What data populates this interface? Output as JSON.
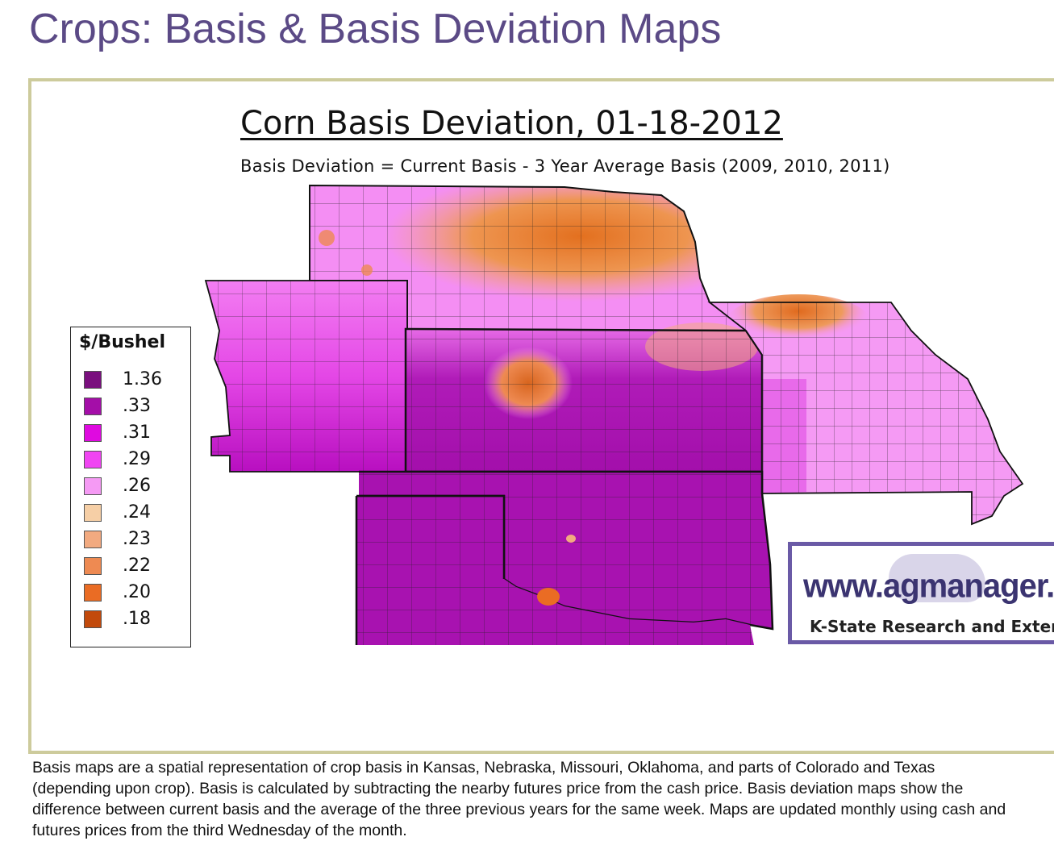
{
  "page": {
    "title": "Crops: Basis & Basis Deviation Maps"
  },
  "map": {
    "title": "Corn Basis Deviation, 01-18-2012",
    "subtitle": "Basis Deviation = Current Basis - 3 Year Average Basis (2009, 2010, 2011)",
    "legend": {
      "title": "$/Bushel",
      "items": [
        {
          "value": "1.36",
          "color": "#7a0f7e"
        },
        {
          "value": ".33",
          "color": "#a40ea8"
        },
        {
          "value": ".31",
          "color": "#df0ae0"
        },
        {
          "value": ".29",
          "color": "#f045f2"
        },
        {
          "value": ".26",
          "color": "#f59af4"
        },
        {
          "value": ".24",
          "color": "#f6cfa6"
        },
        {
          "value": ".23",
          "color": "#f2aa80"
        },
        {
          "value": ".22",
          "color": "#ee8a52"
        },
        {
          "value": ".20",
          "color": "#ea6c24"
        },
        {
          "value": ".18",
          "color": "#c24a0c"
        }
      ]
    },
    "badge": {
      "url": "www.agmanager.info",
      "org": "K-State Research and Extension"
    }
  },
  "caption": {
    "lines": [
      "Basis maps are a spatial representation of crop basis in Kansas, Nebraska, Missouri, Oklahoma, and parts of Colorado and Texas",
      "(depending upon crop).  Basis is calculated by subtracting the nearby futures price from the cash price.  Basis deviation maps show the",
      "difference between current basis and the average of the three previous years for the same week.  Maps are updated monthly using cash and",
      "futures prices from the third Wednesday of the month."
    ]
  }
}
